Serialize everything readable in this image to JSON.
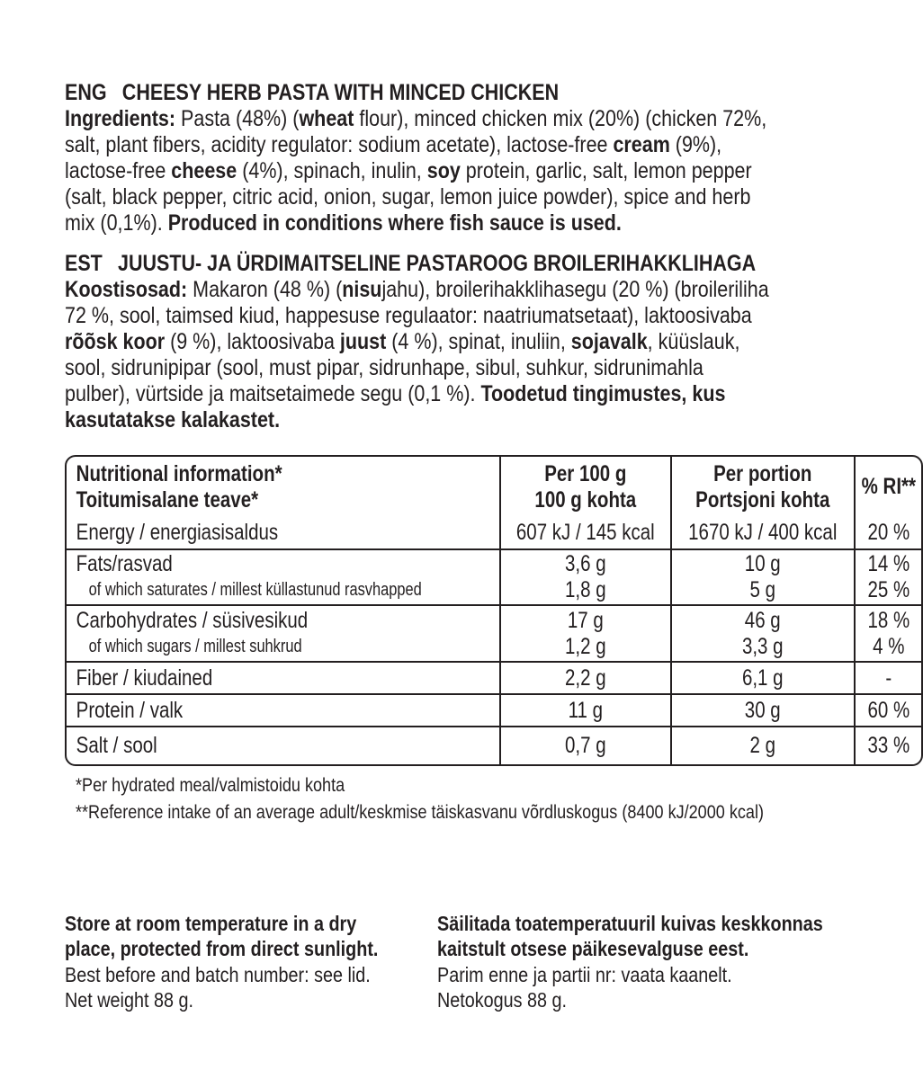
{
  "eng": {
    "lang": "ENG",
    "title": "CHEESY HERB PASTA WITH MINCED CHICKEN",
    "lines": [
      [
        {
          "t": "Ingredients:",
          "b": true
        },
        {
          "t": " Pasta (48%) ("
        },
        {
          "t": "wheat",
          "b": true
        },
        {
          "t": " flour), minced chicken mix (20%) (chicken 72%,"
        }
      ],
      [
        {
          "t": "salt, plant fibers, acidity regulator: sodium acetate), lactose-free "
        },
        {
          "t": "cream",
          "b": true
        },
        {
          "t": " (9%),"
        }
      ],
      [
        {
          "t": "lactose-free "
        },
        {
          "t": "cheese",
          "b": true
        },
        {
          "t": " (4%), spinach, inulin, "
        },
        {
          "t": "soy",
          "b": true
        },
        {
          "t": " protein, garlic, salt, lemon pepper"
        }
      ],
      [
        {
          "t": "(salt, black pepper, citric acid, onion, sugar, lemon juice powder), spice and herb"
        }
      ],
      [
        {
          "t": "mix (0,1%). "
        },
        {
          "t": "Produced in conditions where fish sauce is used.",
          "b": true
        }
      ]
    ]
  },
  "est": {
    "lang": "EST",
    "title": "JUUSTU- JA ÜRDIMAITSELINE PASTAROOG BROILERIHAKKLIHAGA",
    "lines": [
      [
        {
          "t": "Koostisosad:",
          "b": true
        },
        {
          "t": " Makaron (48 %) ("
        },
        {
          "t": "nisu",
          "b": true
        },
        {
          "t": "jahu), broilerihakklihasegu (20 %) (broileriliha"
        }
      ],
      [
        {
          "t": "72 %, sool, taimsed kiud, happesuse regulaator: naatriumatsetaat), laktoosivaba"
        }
      ],
      [
        {
          "t": "rõõsk koor",
          "b": true
        },
        {
          "t": " (9 %), laktoosivaba "
        },
        {
          "t": "juust",
          "b": true
        },
        {
          "t": " (4 %), spinat, inuliin, "
        },
        {
          "t": "sojavalk",
          "b": true
        },
        {
          "t": ", küüslauk,"
        }
      ],
      [
        {
          "t": "sool, sidrunipipar (sool, must pipar, sidrunhape, sibul, suhkur, sidrunimahla"
        }
      ],
      [
        {
          "t": "pulber), vürtside ja maitsetaimede segu (0,1 %). "
        },
        {
          "t": "Toodetud tingimustes, kus",
          "b": true
        }
      ],
      [
        {
          "t": "kasutatakse kalakastet.",
          "b": true
        }
      ]
    ]
  },
  "table": {
    "header": {
      "label": [
        "Nutritional information*",
        "Toitumisalane teave*"
      ],
      "per100": [
        "Per 100 g",
        "100 g kohta"
      ],
      "portion": [
        "Per portion",
        "Portsjoni kohta"
      ],
      "ri": "% RI**"
    },
    "rows": [
      {
        "label": [
          "Energy / energiasisaldus"
        ],
        "per100": [
          "607 kJ / 145 kcal"
        ],
        "portion": [
          "1670 kJ / 400 kcal"
        ],
        "ri": [
          "20 %"
        ]
      },
      {
        "label": [
          "Fats/rasvad",
          "of which saturates / millest küllastunud rasvhapped"
        ],
        "per100": [
          "3,6 g",
          "1,8 g"
        ],
        "portion": [
          "10 g",
          "5 g"
        ],
        "ri": [
          "14 %",
          "25 %"
        ]
      },
      {
        "label": [
          "Carbohydrates / süsivesikud",
          "of which sugars / millest suhkrud"
        ],
        "per100": [
          "17 g",
          "1,2 g"
        ],
        "portion": [
          "46 g",
          "3,3 g"
        ],
        "ri": [
          "18 %",
          "4 %"
        ]
      },
      {
        "label": [
          "Fiber / kiudained"
        ],
        "per100": [
          "2,2 g"
        ],
        "portion": [
          "6,1 g"
        ],
        "ri": [
          "-"
        ]
      },
      {
        "label": [
          "Protein / valk"
        ],
        "per100": [
          "11 g"
        ],
        "portion": [
          "30 g"
        ],
        "ri": [
          "60 %"
        ]
      },
      {
        "label": [
          "Salt / sool"
        ],
        "per100": [
          "0,7 g"
        ],
        "portion": [
          "2 g"
        ],
        "ri": [
          "33 %"
        ]
      }
    ]
  },
  "footnotes": [
    "*Per hydrated meal/valmistoidu kohta",
    "**Reference intake of an average adult/keskmise täiskasvanu võrdluskogus (8400 kJ/2000 kcal)"
  ],
  "storage": {
    "eng": {
      "bold": [
        "Store at room temperature in a dry",
        "place, protected from direct sunlight."
      ],
      "plain": [
        "Best before and batch number: see lid.",
        "Net weight 88 g."
      ]
    },
    "est": {
      "bold": [
        "Säilitada toatemperatuuril kuivas keskkonnas",
        "kaitstult otsese päikesevalguse eest."
      ],
      "plain": [
        "Parim enne ja partii nr: vaata kaanelt.",
        "Netokogus 88 g."
      ]
    }
  }
}
